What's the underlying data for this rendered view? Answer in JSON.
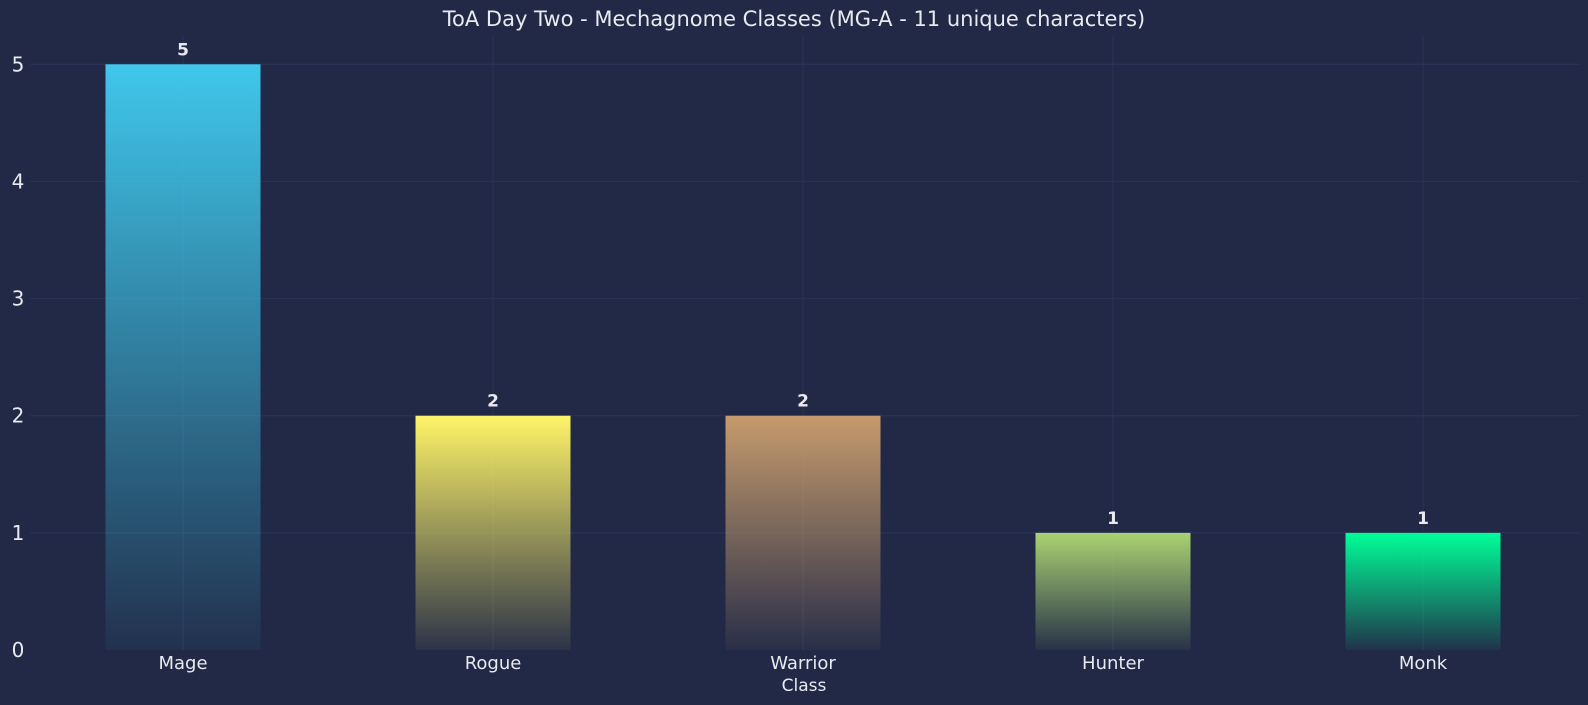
{
  "chart_data": {
    "type": "bar",
    "title": "ToA Day Two - Mechagnome Classes (MG-A - 11 unique characters)",
    "xlabel": "Class",
    "ylabel": "",
    "categories": [
      "Mage",
      "Rogue",
      "Warrior",
      "Hunter",
      "Monk"
    ],
    "values": [
      5,
      2,
      2,
      1,
      1
    ],
    "data_labels": [
      "5",
      "2",
      "2",
      "1",
      "1"
    ],
    "colors": [
      "#3FC7EB",
      "#FFF468",
      "#C69B6D",
      "#AAD372",
      "#00FF98"
    ],
    "yticks": [
      "0",
      "1",
      "2",
      "3",
      "4",
      "5"
    ],
    "ylim": [
      0,
      5.25
    ],
    "grid": true,
    "background": "#212946",
    "grid_color": "#2A3459"
  }
}
